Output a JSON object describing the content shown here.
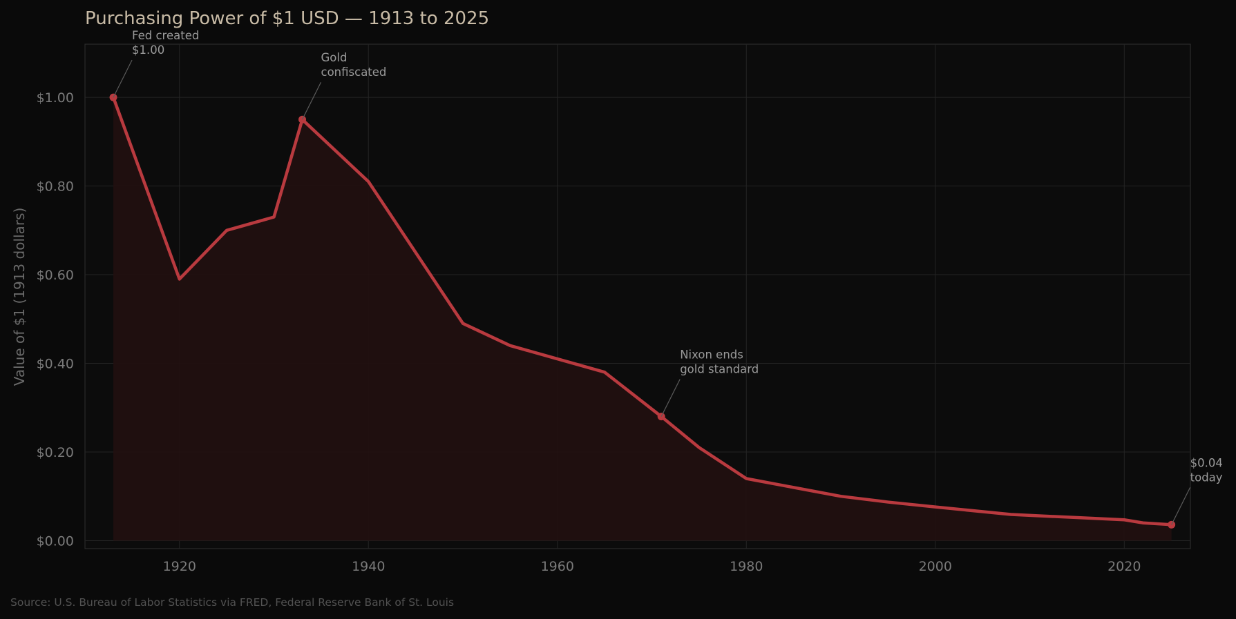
{
  "chart_data": {
    "type": "area",
    "title": "Purchasing Power of $1 USD — 1913 to 2025",
    "xlabel": "",
    "ylabel": "Value of $1 (1913 dollars)",
    "xlim": [
      1910,
      2027
    ],
    "ylim": [
      -0.018,
      1.12
    ],
    "x_ticks": [
      1920,
      1940,
      1960,
      1980,
      2000,
      2020
    ],
    "y_ticks": [
      {
        "value": 0.0,
        "label": "$0.00"
      },
      {
        "value": 0.2,
        "label": "$0.20"
      },
      {
        "value": 0.4,
        "label": "$0.40"
      },
      {
        "value": 0.6,
        "label": "$0.60"
      },
      {
        "value": 0.8,
        "label": "$0.80"
      },
      {
        "value": 1.0,
        "label": "$1.00"
      }
    ],
    "grid": true,
    "series": [
      {
        "x": [
          1913,
          1920,
          1925,
          1930,
          1933,
          1940,
          1950,
          1955,
          1960,
          1965,
          1971,
          1975,
          1980,
          1990,
          1995,
          2000,
          2008,
          2015,
          2020,
          2022,
          2025
        ],
        "y": [
          1.0,
          0.59,
          0.7,
          0.73,
          0.95,
          0.81,
          0.49,
          0.44,
          0.41,
          0.38,
          0.28,
          0.21,
          0.14,
          0.1,
          0.087,
          0.076,
          0.059,
          0.052,
          0.047,
          0.04,
          0.036
        ]
      }
    ],
    "annotations": [
      {
        "x": 1913,
        "y": 1.0,
        "lines": [
          "Fed created",
          "$1.00"
        ]
      },
      {
        "x": 1933,
        "y": 0.95,
        "lines": [
          "Gold",
          "confiscated"
        ]
      },
      {
        "x": 1971,
        "y": 0.28,
        "lines": [
          "Nixon ends",
          "gold standard"
        ]
      },
      {
        "x": 2025,
        "y": 0.036,
        "lines": [
          "$0.04",
          "today"
        ]
      }
    ],
    "colors": {
      "line": "#b93a3f",
      "area": "#211010",
      "background": "#0a0a0a",
      "plot_background": "#0c0c0c",
      "grid": "#242424"
    }
  },
  "source": "Source: U.S. Bureau of Labor Statistics via FRED, Federal Reserve Bank of St. Louis"
}
